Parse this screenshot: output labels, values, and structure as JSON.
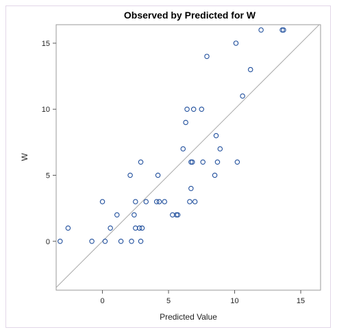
{
  "chart_data": {
    "type": "scatter",
    "title": "Observed by Predicted for W",
    "xlabel": "Predicted Value",
    "ylabel": "W",
    "xlim": [
      -3.5,
      16.5
    ],
    "ylim": [
      -3.7,
      16.4
    ],
    "xticks": [
      0,
      5,
      10,
      15
    ],
    "yticks": [
      0,
      5,
      10,
      15
    ],
    "reference_line": "y = x",
    "marker": "open-circle",
    "marker_color": "#1f4e9c",
    "line_color": "#a9a9a9",
    "series": [
      {
        "name": "",
        "points": [
          {
            "x": -3.2,
            "y": 0
          },
          {
            "x": -2.6,
            "y": 1
          },
          {
            "x": -0.8,
            "y": 0
          },
          {
            "x": 0.0,
            "y": 3
          },
          {
            "x": 0.2,
            "y": 0
          },
          {
            "x": 0.6,
            "y": 1
          },
          {
            "x": 1.1,
            "y": 2
          },
          {
            "x": 1.4,
            "y": 0
          },
          {
            "x": 2.1,
            "y": 5
          },
          {
            "x": 2.2,
            "y": 0
          },
          {
            "x": 2.4,
            "y": 2
          },
          {
            "x": 2.5,
            "y": 1
          },
          {
            "x": 2.5,
            "y": 3
          },
          {
            "x": 2.8,
            "y": 1
          },
          {
            "x": 2.9,
            "y": 6
          },
          {
            "x": 2.9,
            "y": 0
          },
          {
            "x": 3.0,
            "y": 1
          },
          {
            "x": 3.3,
            "y": 3
          },
          {
            "x": 4.1,
            "y": 3
          },
          {
            "x": 4.2,
            "y": 5
          },
          {
            "x": 4.3,
            "y": 3
          },
          {
            "x": 4.7,
            "y": 3
          },
          {
            "x": 5.3,
            "y": 2
          },
          {
            "x": 5.6,
            "y": 2
          },
          {
            "x": 5.7,
            "y": 2
          },
          {
            "x": 6.1,
            "y": 7
          },
          {
            "x": 6.3,
            "y": 9
          },
          {
            "x": 6.4,
            "y": 10
          },
          {
            "x": 6.6,
            "y": 3
          },
          {
            "x": 6.7,
            "y": 6
          },
          {
            "x": 6.7,
            "y": 4
          },
          {
            "x": 6.8,
            "y": 6
          },
          {
            "x": 6.9,
            "y": 10
          },
          {
            "x": 7.0,
            "y": 3
          },
          {
            "x": 7.5,
            "y": 10
          },
          {
            "x": 7.6,
            "y": 6
          },
          {
            "x": 7.9,
            "y": 14
          },
          {
            "x": 8.5,
            "y": 5
          },
          {
            "x": 8.6,
            "y": 8
          },
          {
            "x": 8.7,
            "y": 6
          },
          {
            "x": 8.9,
            "y": 7
          },
          {
            "x": 10.1,
            "y": 15
          },
          {
            "x": 10.2,
            "y": 6
          },
          {
            "x": 10.6,
            "y": 11
          },
          {
            "x": 11.2,
            "y": 13
          },
          {
            "x": 12.0,
            "y": 16
          },
          {
            "x": 13.6,
            "y": 16
          },
          {
            "x": 13.7,
            "y": 16
          }
        ]
      }
    ]
  }
}
